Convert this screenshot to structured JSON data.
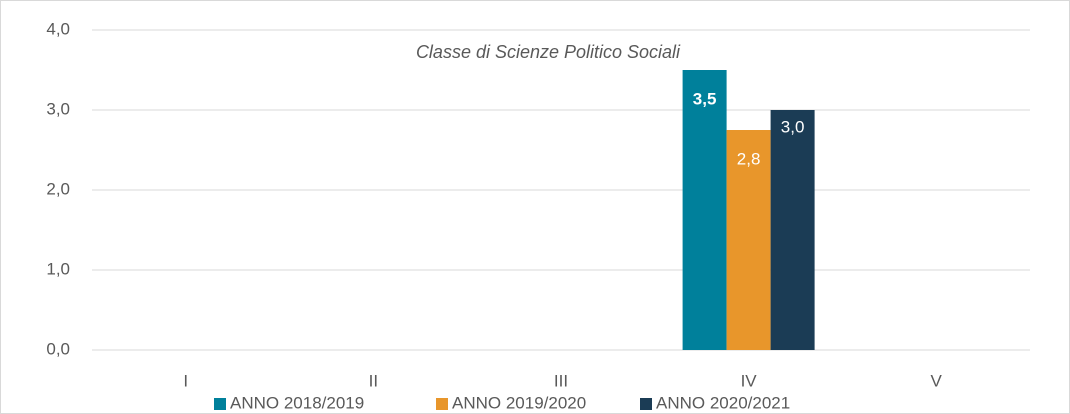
{
  "chart_data": {
    "type": "bar",
    "title": "Classe di Scienze Politico Sociali",
    "categories": [
      "I",
      "II",
      "III",
      "IV",
      "V"
    ],
    "series": [
      {
        "name": "ANNO 2018/2019",
        "color": "#00809b",
        "values": [
          null,
          null,
          null,
          3.5,
          null
        ],
        "value_labels": [
          null,
          null,
          null,
          "3,5",
          null
        ]
      },
      {
        "name": "ANNO 2019/2020",
        "color": "#e8962b",
        "values": [
          null,
          null,
          null,
          2.75,
          null
        ],
        "value_labels": [
          null,
          null,
          null,
          "2,8",
          null
        ]
      },
      {
        "name": "ANNO 2020/2021",
        "color": "#1b3c55",
        "values": [
          null,
          null,
          null,
          3.0,
          null
        ],
        "value_labels": [
          null,
          null,
          null,
          "3,0",
          null
        ]
      }
    ],
    "ylim": [
      0,
      4
    ],
    "yticks": [
      {
        "value": 0,
        "label": "0,0"
      },
      {
        "value": 1,
        "label": "1,0"
      },
      {
        "value": 2,
        "label": "2,0"
      },
      {
        "value": 3,
        "label": "3,0"
      },
      {
        "value": 4,
        "label": "4,0"
      }
    ],
    "grid": true,
    "legend": "bottom"
  }
}
